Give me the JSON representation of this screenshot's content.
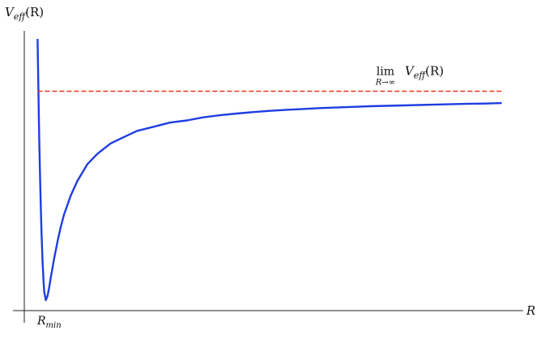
{
  "chart_data": {
    "type": "line",
    "title": "",
    "xlabel": "R",
    "ylabel": {
      "base": "V",
      "sub": "eff",
      "arg": "(R)"
    },
    "x_ticks": [],
    "y_ticks": [],
    "grid": false,
    "annotations": {
      "asymptote": {
        "op": "lim",
        "under": "R→∞",
        "base": "V",
        "sub": "eff",
        "arg": "(R)"
      },
      "minimum": {
        "base": "R",
        "sub": "min"
      }
    },
    "series": [
      {
        "color": "#1f3de0",
        "x": [
          1.0,
          1.02,
          1.05,
          1.08,
          1.1,
          1.12,
          1.15,
          1.18,
          1.2,
          1.25,
          1.3,
          1.35,
          1.4,
          1.5,
          1.6,
          1.7,
          1.8,
          2.0,
          2.2,
          2.5,
          2.8,
          3.2,
          3.6,
          4.0,
          4.5,
          5.0,
          5.5,
          6.0,
          6.5,
          7.0,
          7.5,
          8.0,
          8.5,
          9.0,
          9.5,
          10.0,
          10.5,
          11.0,
          11.5,
          12.0,
          12.5,
          13.0,
          13.5,
          14.0,
          14.5,
          15.0
        ],
        "y": [
          1.25,
          1.06,
          0.78,
          0.55,
          0.43,
          0.32,
          0.19,
          0.09,
          0.04,
          0.0,
          0.02,
          0.06,
          0.11,
          0.2,
          0.28,
          0.35,
          0.41,
          0.5,
          0.57,
          0.65,
          0.7,
          0.75,
          0.78,
          0.81,
          0.83,
          0.85,
          0.86,
          0.875,
          0.885,
          0.893,
          0.9,
          0.906,
          0.911,
          0.915,
          0.919,
          0.922,
          0.925,
          0.928,
          0.93,
          0.932,
          0.934,
          0.936,
          0.938,
          0.94,
          0.941,
          0.943
        ]
      },
      {
        "color": "#e8371c",
        "dashed": true,
        "x": [
          1.0,
          15.0
        ],
        "y": [
          1.0,
          1.0
        ]
      }
    ],
    "xlim": [
      0.6,
      15.3
    ],
    "ylim": [
      -0.05,
      1.32
    ]
  }
}
